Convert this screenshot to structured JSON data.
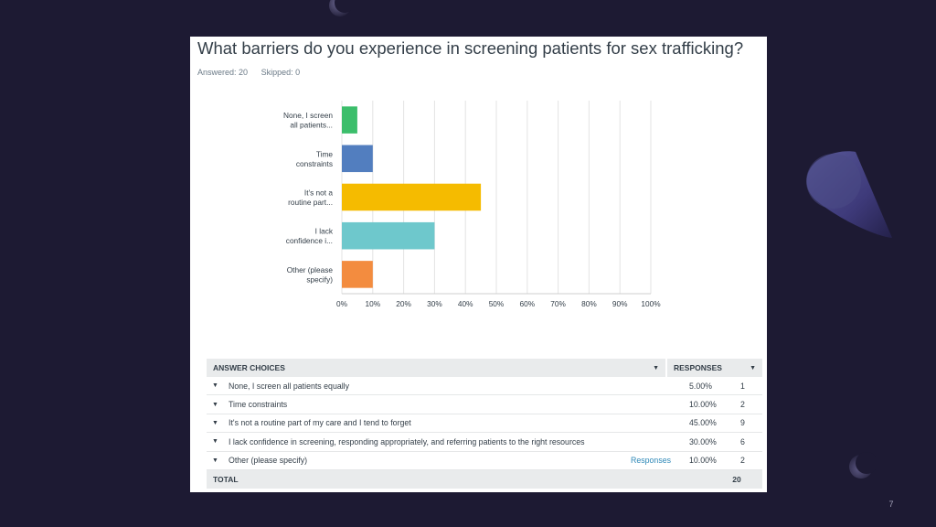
{
  "slide": {
    "page_number": "7"
  },
  "survey": {
    "question": "What barriers do you experience in screening patients for sex trafficking?",
    "answered_label": "Answered: 20",
    "skipped_label": "Skipped: 0"
  },
  "colors": {
    "background": "#1d1a33",
    "grid": "#e3e3e3",
    "text": "#333e48",
    "link": "#2f89b8"
  },
  "chart_data": {
    "type": "bar",
    "orientation": "horizontal",
    "categories": [
      [
        "None, I screen",
        "all patients..."
      ],
      [
        "Time",
        "constraints"
      ],
      [
        "It's not a",
        "routine part..."
      ],
      [
        "I lack",
        "confidence i..."
      ],
      [
        "Other (please",
        "specify)"
      ]
    ],
    "values": [
      5,
      10,
      45,
      30,
      10
    ],
    "bar_colors": [
      "#3cbe6b",
      "#527ebf",
      "#f5bb00",
      "#6ec8cc",
      "#f38c3f"
    ],
    "xlim": [
      0,
      100
    ],
    "xticks": [
      0,
      10,
      20,
      30,
      40,
      50,
      60,
      70,
      80,
      90,
      100
    ],
    "xtick_suffix": "%",
    "grid": true,
    "title": "",
    "xlabel": "",
    "ylabel": ""
  },
  "table": {
    "header_choices": "ANSWER CHOICES",
    "header_responses": "RESPONSES",
    "rows": [
      {
        "label": "None, I screen all patients equally",
        "link": "",
        "percent": "5.00%",
        "count": "1"
      },
      {
        "label": "Time constraints",
        "link": "",
        "percent": "10.00%",
        "count": "2"
      },
      {
        "label": "It's not a routine part of my care and I tend to forget",
        "link": "",
        "percent": "45.00%",
        "count": "9"
      },
      {
        "label": "I lack confidence in screening, responding appropriately, and referring patients to the right resources",
        "link": "",
        "percent": "30.00%",
        "count": "6"
      },
      {
        "label": "Other (please specify)",
        "link": "Responses",
        "percent": "10.00%",
        "count": "2"
      }
    ],
    "total_label": "TOTAL",
    "total_value": "20"
  }
}
